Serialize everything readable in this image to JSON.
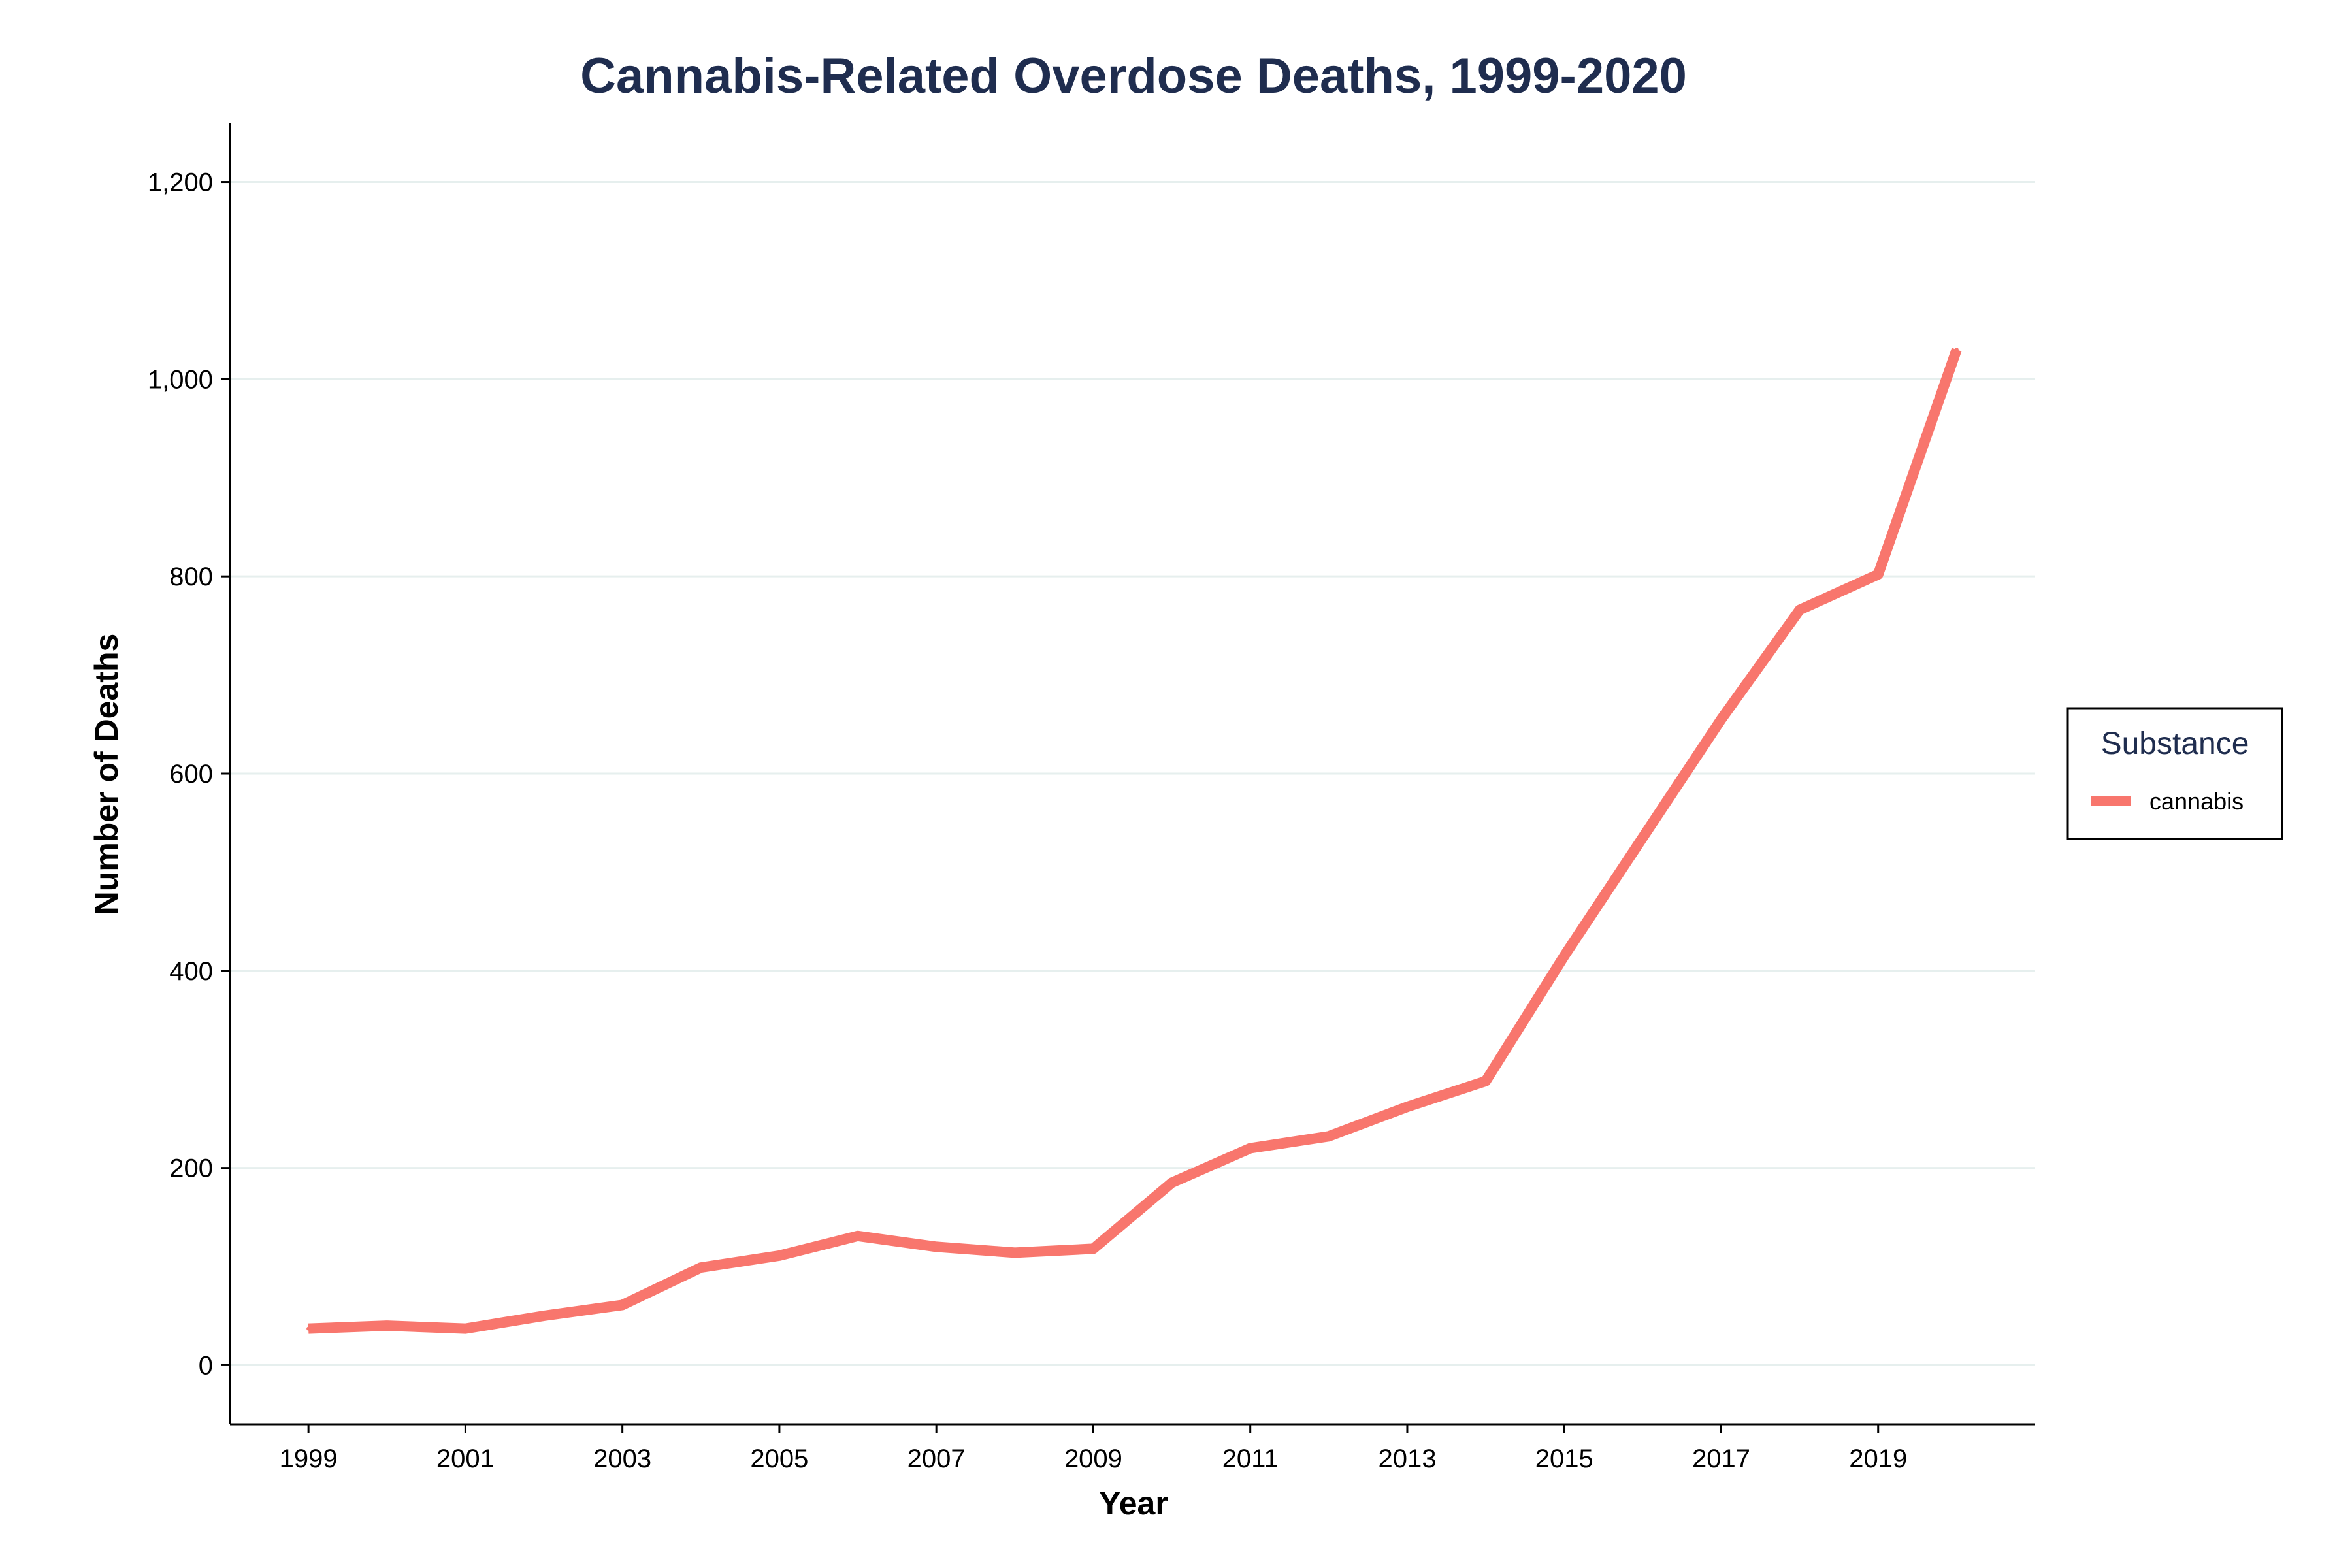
{
  "chart_data": {
    "type": "line",
    "title": "Cannabis-Related Overdose Deaths, 1999-2020",
    "xlabel": "Year",
    "ylabel": "Number of Deaths",
    "xlim": [
      1998,
      2021
    ],
    "ylim": [
      -60,
      1260
    ],
    "x_ticks": [
      "1999",
      "2001",
      "2003",
      "2005",
      "2007",
      "2009",
      "2011",
      "2013",
      "2015",
      "2017",
      "2019"
    ],
    "y_ticks": [
      0,
      200,
      400,
      600,
      800,
      1000,
      1200
    ],
    "y_tick_labels": [
      "0",
      "200",
      "400",
      "600",
      "800",
      "1,000",
      "1,200"
    ],
    "grid": "horizontal",
    "legend": {
      "title": "Substance",
      "position": "right"
    },
    "series": [
      {
        "name": "cannabis",
        "color": "#f8766d",
        "x": [
          1999,
          2000,
          2001,
          2002,
          2003,
          2004,
          2005,
          2006,
          2007,
          2008,
          2009,
          2010,
          2011,
          2012,
          2013,
          2014,
          2015,
          2016,
          2017,
          2018,
          2019,
          2020
        ],
        "values": [
          37,
          40,
          37,
          50,
          61,
          99,
          111,
          131,
          120,
          114,
          118,
          185,
          220,
          232,
          262,
          288,
          415,
          535,
          655,
          766,
          802,
          1030
        ]
      }
    ]
  }
}
